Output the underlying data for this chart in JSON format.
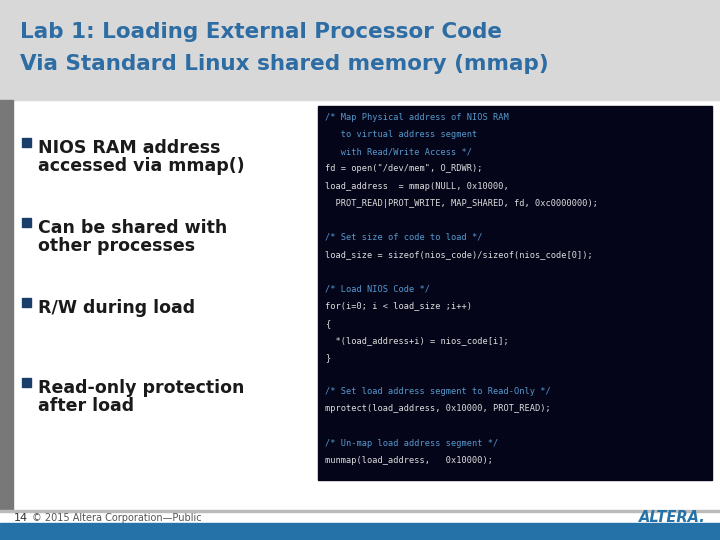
{
  "title_line1": "Lab 1: Loading External Processor Code",
  "title_line2": "Via Standard Linux shared memory (mmap)",
  "title_color": "#2E6DA4",
  "slide_bg": "#FFFFFF",
  "title_bg": "#D8D8D8",
  "bullet_color": "#1A3E6B",
  "bullet_text_color": "#1A1A1A",
  "bullets": [
    [
      "NIOS RAM address",
      "accessed via mmap()"
    ],
    [
      "Can be shared with",
      "other processes"
    ],
    [
      "R/W during load"
    ],
    [
      "Read-only protection",
      "after load"
    ]
  ],
  "code_bg": "#05051A",
  "code_color_comment": "#5599CC",
  "code_color_normal": "#DDDDDD",
  "code_lines": [
    {
      "text": "/* Map Physical address of NIOS RAM",
      "color": "#5599CC"
    },
    {
      "text": "   to virtual address segment",
      "color": "#5599CC"
    },
    {
      "text": "   with Read/Write Access */",
      "color": "#5599CC"
    },
    {
      "text": "fd = open(\"/dev/mem\", O_RDWR);",
      "color": "#DDDDDD"
    },
    {
      "text": "load_address  = mmap(NULL, 0x10000,",
      "color": "#DDDDDD"
    },
    {
      "text": "  PROT_READ|PROT_WRITE, MAP_SHARED, fd, 0xc0000000);",
      "color": "#DDDDDD"
    },
    {
      "text": "",
      "color": "#DDDDDD"
    },
    {
      "text": "/* Set size of code to load */",
      "color": "#5599CC"
    },
    {
      "text": "load_size = sizeof(nios_code)/sizeof(nios_code[0]);",
      "color": "#DDDDDD"
    },
    {
      "text": "",
      "color": "#DDDDDD"
    },
    {
      "text": "/* Load NIOS Code */",
      "color": "#5599CC"
    },
    {
      "text": "for(i=0; i < load_size ;i++)",
      "color": "#DDDDDD"
    },
    {
      "text": "{",
      "color": "#DDDDDD"
    },
    {
      "text": "  *(load_address+i) = nios_code[i];",
      "color": "#DDDDDD"
    },
    {
      "text": "}",
      "color": "#DDDDDD"
    },
    {
      "text": "",
      "color": "#DDDDDD"
    },
    {
      "text": "/* Set load address segment to Read-Only */",
      "color": "#5599CC"
    },
    {
      "text": "mprotect(load_address, 0x10000, PROT_READ);",
      "color": "#DDDDDD"
    },
    {
      "text": "",
      "color": "#DDDDDD"
    },
    {
      "text": "/* Un-map load address segment */",
      "color": "#5599CC"
    },
    {
      "text": "munmap(load_address,   0x10000);",
      "color": "#DDDDDD"
    }
  ],
  "footer_bar_color": "#2472A8",
  "footer_line_color": "#1A5580",
  "slide_number": "14",
  "copyright": "© 2015 Altera Corporation—Public",
  "top_bar_color": "#909090",
  "left_accent_color": "#787878"
}
